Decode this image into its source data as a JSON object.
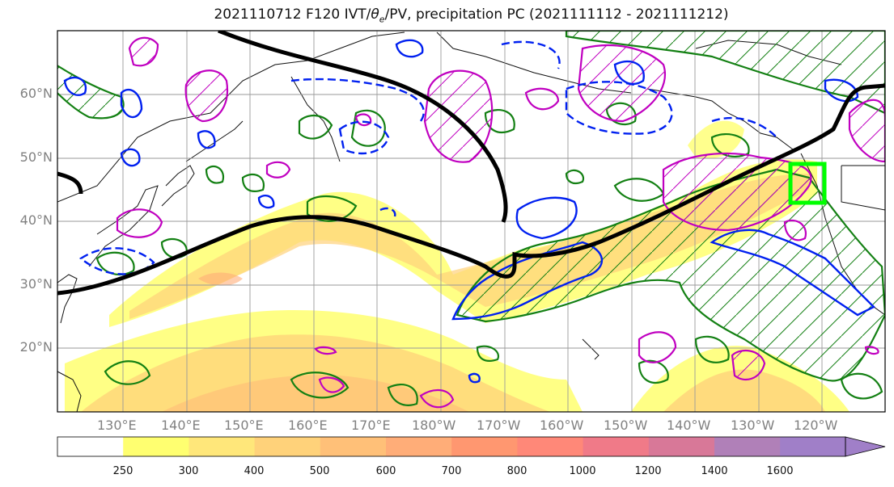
{
  "title_main": "2021110712 F120 IVT/",
  "title_theta": "θ",
  "title_sub": "e",
  "title_rest": "/PV, precipitation PC (2021111112 - 2021111212)",
  "lat_labels": [
    "60°N",
    "50°N",
    "40°N",
    "30°N",
    "20°N"
  ],
  "lon_labels": [
    "130°E",
    "140°E",
    "150°E",
    "160°E",
    "170°E",
    "180°W",
    "170°W",
    "160°W",
    "150°W",
    "140°W",
    "130°W",
    "120°W"
  ],
  "colorbar": {
    "ticks": [
      "250",
      "300",
      "400",
      "500",
      "600",
      "700",
      "800",
      "1000",
      "1200",
      "1400",
      "1600"
    ],
    "colors": [
      "#ffffff",
      "#ffff70",
      "#ffe77a",
      "#ffd27a",
      "#ffc078",
      "#ffad78",
      "#ff9770",
      "#ff8878",
      "#f07a88",
      "#d87898",
      "#b080b8",
      "#a07fc8"
    ]
  },
  "legend_colors": {
    "jet_contour": "#000000",
    "ivt_fill_low": "#ffff70",
    "green_contour": "#138013",
    "blue_contour": "#0020f0",
    "magenta_contour": "#c000c0",
    "target_box": "#00ff00"
  }
}
